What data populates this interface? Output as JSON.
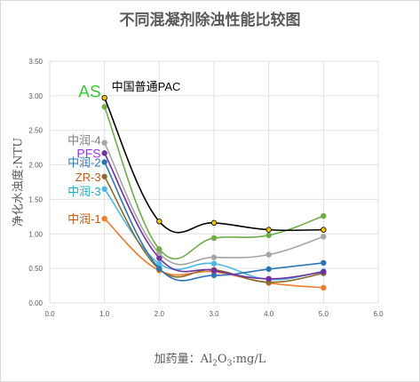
{
  "chart_data": {
    "type": "line",
    "title": "不同混凝剂除浊性能比较图",
    "ylabel": "净化水浊度:NTU",
    "xlabel_prefix": "加药量：Al",
    "xlabel_sub1": "2",
    "xlabel_mid": "O",
    "xlabel_sub2": "3",
    "xlabel_suffix": ":mg/L",
    "xlim": [
      0,
      6
    ],
    "ylim": [
      0,
      3.5
    ],
    "x_ticks": [
      "0.0",
      "1.0",
      "2.0",
      "3.0",
      "4.0",
      "5.0",
      "6.0"
    ],
    "y_ticks": [
      "0.00",
      "0.50",
      "1.00",
      "1.50",
      "2.00",
      "2.50",
      "3.00",
      "3.50"
    ],
    "grid": true,
    "legend": "labels at series start",
    "series": [
      {
        "name": "中国普通PAC",
        "color": "#000000",
        "marker_color": "#f2c200",
        "label_color": "#000000",
        "label_size": 13,
        "x": [
          1,
          2,
          3,
          4,
          5
        ],
        "y": [
          2.97,
          1.18,
          1.16,
          1.06,
          1.06
        ]
      },
      {
        "name": "AS",
        "color": "#70ad47",
        "marker_color": "#70ad47",
        "label_color": "#33cc33",
        "label_size": 19,
        "x": [
          1,
          2,
          3,
          4,
          5
        ],
        "y": [
          2.84,
          0.78,
          0.94,
          0.98,
          1.26
        ]
      },
      {
        "name": "中润-4",
        "color": "#a5a5a5",
        "marker_color": "#a5a5a5",
        "label_color": "#7f7f7f",
        "label_size": 13,
        "x": [
          1,
          2,
          3,
          4,
          5
        ],
        "y": [
          2.32,
          0.72,
          0.66,
          0.7,
          0.96
        ]
      },
      {
        "name": "PFS",
        "color": "#7030a0",
        "marker_color": "#7030a0",
        "label_color": "#9933ff",
        "label_size": 14,
        "x": [
          1,
          2,
          3,
          4,
          5
        ],
        "y": [
          2.17,
          0.65,
          0.47,
          0.35,
          0.45
        ]
      },
      {
        "name": "中润-2",
        "color": "#2e75b6",
        "marker_color": "#2e75b6",
        "label_color": "#2e75b6",
        "label_size": 13,
        "x": [
          1,
          2,
          3,
          4,
          5
        ],
        "y": [
          2.04,
          0.5,
          0.4,
          0.49,
          0.58
        ]
      },
      {
        "name": "ZR-3",
        "color": "#8c6d2c",
        "marker_color": "#8c6d2c",
        "label_color": "#c55a11",
        "label_size": 13,
        "x": [
          1,
          2,
          3,
          4,
          5
        ],
        "y": [
          1.83,
          0.49,
          0.48,
          0.3,
          0.43
        ]
      },
      {
        "name": "中润-3",
        "color": "#4db8e8",
        "marker_color": "#4db8e8",
        "label_color": "#1ab0c8",
        "label_size": 13,
        "x": [
          1,
          2,
          3,
          4,
          5
        ],
        "y": [
          1.65,
          0.57,
          0.57,
          0.34,
          0.46
        ]
      },
      {
        "name": "中润-1",
        "color": "#ed7d31",
        "marker_color": "#ed7d31",
        "label_color": "#c55a11",
        "label_size": 13,
        "x": [
          1,
          2,
          3,
          4,
          5
        ],
        "y": [
          1.22,
          0.47,
          0.45,
          0.29,
          0.22
        ]
      }
    ]
  }
}
